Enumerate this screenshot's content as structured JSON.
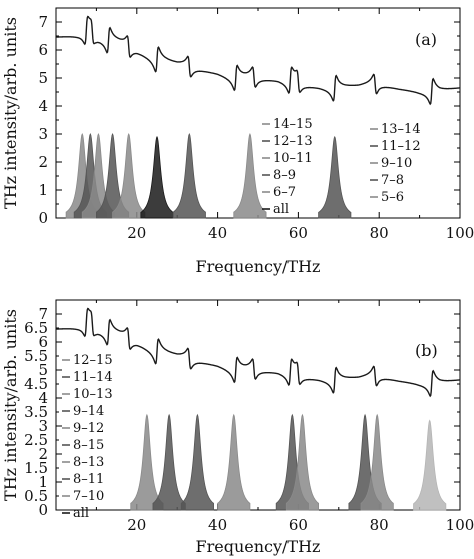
{
  "figure": {
    "ylabel": "THz intensity/arb. units",
    "colors": {
      "axis": "#000000",
      "dark": "#1a1a1a",
      "mid": "#555555",
      "light": "#8a8a8a",
      "pale": "#b5b5b5"
    }
  },
  "chart_data": [
    {
      "type": "line",
      "panel_tag": "(a)",
      "xlabel": "Frequency/THz",
      "ylabel": "THz intensity/arb. units",
      "xlim": [
        0,
        100
      ],
      "ylim": [
        0,
        7.5
      ],
      "xticks": [
        "20",
        "40",
        "60",
        "80",
        "100"
      ],
      "yticks": [
        "0",
        "1",
        "2",
        "3",
        "4",
        "5",
        "6",
        "7"
      ],
      "total_curve": {
        "name": "",
        "x": [
          0,
          5,
          8,
          10,
          15,
          20,
          25,
          30,
          35,
          40,
          45,
          50,
          55,
          60,
          65,
          70,
          75,
          80,
          85,
          90,
          95,
          100
        ],
        "y": [
          6.5,
          6.55,
          6.6,
          6.45,
          6.25,
          6.0,
          5.65,
          5.45,
          5.35,
          5.2,
          4.95,
          5.0,
          4.95,
          4.75,
          4.7,
          4.6,
          4.65,
          4.8,
          4.65,
          4.55,
          4.5,
          4.6
        ],
        "features_x": [
          7.5,
          9,
          13,
          18,
          25,
          33,
          44.5,
          49,
          58,
          60,
          69,
          79,
          93
        ]
      },
      "legend_left": [
        "14–15",
        "12–13",
        "10–11",
        "8–9",
        "6–7",
        "all"
      ],
      "legend_right": [
        "13–14",
        "11–12",
        "9–10",
        "7–8",
        "5–6"
      ],
      "peaks": [
        {
          "x": 6.5,
          "height": 3.0,
          "shade": "light"
        },
        {
          "x": 8.5,
          "height": 3.0,
          "shade": "mid"
        },
        {
          "x": 10.5,
          "height": 3.0,
          "shade": "light"
        },
        {
          "x": 14.0,
          "height": 3.0,
          "shade": "mid"
        },
        {
          "x": 18.0,
          "height": 3.0,
          "shade": "light"
        },
        {
          "x": 25.0,
          "height": 2.9,
          "shade": "dark"
        },
        {
          "x": 33.0,
          "height": 3.0,
          "shade": "mid"
        },
        {
          "x": 48.0,
          "height": 3.0,
          "shade": "light"
        },
        {
          "x": 69.0,
          "height": 2.9,
          "shade": "mid"
        }
      ]
    },
    {
      "type": "line",
      "panel_tag": "(b)",
      "xlabel": "Frequency/THz",
      "ylabel": "THz intensity/arb. units",
      "xlim": [
        0,
        100
      ],
      "ylim": [
        0,
        7.5
      ],
      "xticks": [
        "20",
        "40",
        "60",
        "80",
        "100"
      ],
      "yticks": [
        "0",
        "0.5",
        "1",
        "1.5",
        "2",
        "2.5",
        "3",
        "3.5",
        "4",
        "4.5",
        "5",
        "5.5",
        "6",
        "6.5",
        "7"
      ],
      "total_curve": {
        "name": "",
        "x": [
          0,
          5,
          8,
          10,
          15,
          20,
          25,
          30,
          35,
          40,
          45,
          50,
          55,
          60,
          65,
          70,
          75,
          80,
          85,
          90,
          95,
          100
        ],
        "y": [
          6.5,
          6.55,
          6.6,
          6.45,
          6.25,
          6.0,
          5.65,
          5.45,
          5.35,
          5.2,
          4.95,
          5.0,
          4.95,
          4.75,
          4.7,
          4.6,
          4.65,
          4.8,
          4.65,
          4.55,
          4.5,
          4.6
        ],
        "features_x": [
          7.5,
          9,
          13,
          18,
          25,
          33,
          44.5,
          49,
          58,
          60,
          69,
          79,
          93
        ]
      },
      "legend_left": [
        "12–15",
        "11–14",
        "10–13",
        "9–14",
        "9–12",
        "8–15",
        "8–13",
        "8–11",
        "7–10",
        "all"
      ],
      "legend_right": [],
      "peaks": [
        {
          "x": 22.5,
          "height": 3.4,
          "shade": "light"
        },
        {
          "x": 28.0,
          "height": 3.4,
          "shade": "mid"
        },
        {
          "x": 35.0,
          "height": 3.4,
          "shade": "mid"
        },
        {
          "x": 44.0,
          "height": 3.4,
          "shade": "light"
        },
        {
          "x": 58.5,
          "height": 3.4,
          "shade": "mid"
        },
        {
          "x": 61.0,
          "height": 3.4,
          "shade": "light"
        },
        {
          "x": 76.5,
          "height": 3.4,
          "shade": "mid"
        },
        {
          "x": 79.5,
          "height": 3.4,
          "shade": "light"
        },
        {
          "x": 92.5,
          "height": 3.2,
          "shade": "pale"
        }
      ]
    }
  ]
}
